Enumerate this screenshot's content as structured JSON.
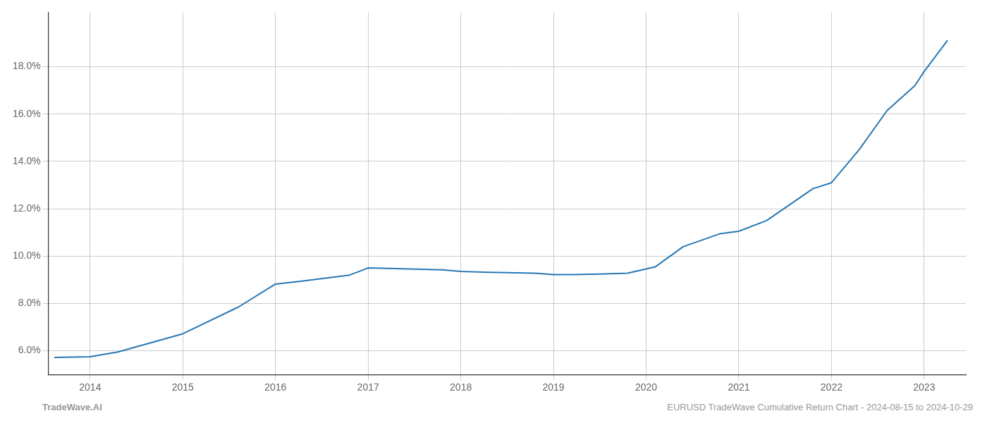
{
  "chart_data": {
    "type": "line",
    "x": [
      2013.62,
      2014.0,
      2014.3,
      2015.0,
      2015.6,
      2016.0,
      2016.3,
      2016.8,
      2017.0,
      2017.3,
      2017.8,
      2018.0,
      2018.3,
      2018.8,
      2019.0,
      2019.2,
      2019.5,
      2019.8,
      2020.1,
      2020.4,
      2020.8,
      2021.0,
      2021.3,
      2021.8,
      2022.0,
      2022.3,
      2022.6,
      2022.9,
      2023.0,
      2023.25
    ],
    "values": [
      5.72,
      5.75,
      5.95,
      6.72,
      7.85,
      8.82,
      8.95,
      9.2,
      9.5,
      9.47,
      9.42,
      9.35,
      9.32,
      9.28,
      9.22,
      9.22,
      9.24,
      9.28,
      9.55,
      10.4,
      10.95,
      11.05,
      11.5,
      12.85,
      13.1,
      14.5,
      16.15,
      17.2,
      17.8,
      19.1
    ],
    "color": "#2878b5",
    "xlim": [
      2013.55,
      2023.45
    ],
    "xticks": [
      2014,
      2015,
      2016,
      2017,
      2018,
      2019,
      2020,
      2021,
      2022,
      2023
    ],
    "ylim": [
      5.0,
      20.3
    ],
    "yticks": [
      {
        "value": 6.0,
        "label": "6.0%"
      },
      {
        "value": 8.0,
        "label": "8.0%"
      },
      {
        "value": 10.0,
        "label": "10.0%"
      },
      {
        "value": 12.0,
        "label": "12.0%"
      },
      {
        "value": 14.0,
        "label": "14.0%"
      },
      {
        "value": 16.0,
        "label": "16.0%"
      },
      {
        "value": 18.0,
        "label": "18.0%"
      }
    ],
    "grid": true,
    "annotations": [
      "TradeWave.AI",
      "EURUSD TradeWave Cumulative Return Chart - 2024-08-15 to 2024-10-29"
    ]
  }
}
